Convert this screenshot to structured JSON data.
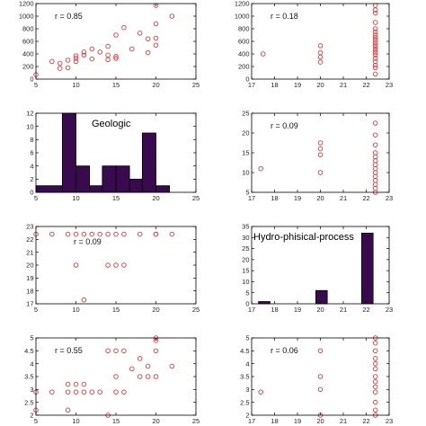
{
  "colors": {
    "marker": "#e0383a",
    "bar_fill": "#3a0a4e",
    "bar_edge": "#000000",
    "axis": "#000000"
  },
  "chart_data": [
    {
      "type": "scatter",
      "annotation": "r = 0.85",
      "xlim": [
        5,
        25
      ],
      "ylim": [
        0,
        1200
      ],
      "xticks": [
        5,
        10,
        15,
        20,
        25
      ],
      "yticks": [
        0,
        200,
        400,
        600,
        800,
        1000,
        1200
      ],
      "x": [
        5,
        7,
        8,
        8,
        9,
        9,
        10,
        10,
        10,
        11,
        11,
        12,
        12,
        13,
        14,
        14,
        14,
        15,
        15,
        15,
        16,
        17,
        18,
        19,
        19,
        20,
        20,
        20,
        20,
        22
      ],
      "y": [
        70,
        280,
        170,
        250,
        180,
        300,
        280,
        330,
        370,
        380,
        430,
        320,
        480,
        430,
        310,
        380,
        520,
        330,
        360,
        700,
        820,
        480,
        730,
        420,
        640,
        540,
        650,
        880,
        1170,
        1000
      ]
    },
    {
      "type": "scatter",
      "annotation": "r = 0.18",
      "xlim": [
        17,
        23
      ],
      "ylim": [
        0,
        1200
      ],
      "xticks": [
        17,
        18,
        19,
        20,
        21,
        22,
        23
      ],
      "yticks": [
        0,
        200,
        400,
        600,
        800,
        1000,
        1200
      ],
      "x": [
        17.5,
        20,
        20,
        20,
        20,
        22.4,
        22.4,
        22.4,
        22.4,
        22.4,
        22.4,
        22.4,
        22.4,
        22.4,
        22.4,
        22.4,
        22.4,
        22.4,
        22.4,
        22.4,
        22.4,
        22.4,
        22.4,
        22.4,
        22.4
      ],
      "y": [
        400,
        270,
        350,
        420,
        530,
        80,
        180,
        220,
        280,
        330,
        380,
        420,
        460,
        500,
        540,
        580,
        620,
        660,
        700,
        750,
        800,
        900,
        1050,
        1100,
        1170
      ]
    },
    {
      "type": "bar",
      "title": "Geologic",
      "xlim": [
        5,
        25
      ],
      "ylim": [
        0,
        12
      ],
      "xticks": [
        5,
        10,
        15,
        20,
        25
      ],
      "yticks": [
        0,
        2,
        4,
        6,
        8,
        10,
        12
      ],
      "bin_edges": [
        5,
        8.3,
        10,
        11.7,
        13.3,
        15,
        16.7,
        18.3,
        20,
        21.7
      ],
      "values": [
        1,
        12,
        4,
        1,
        4,
        4,
        2,
        9,
        1
      ]
    },
    {
      "type": "scatter",
      "annotation": "r = 0.09",
      "xlim": [
        17,
        23
      ],
      "ylim": [
        5,
        25
      ],
      "xticks": [
        17,
        18,
        19,
        20,
        21,
        22,
        23
      ],
      "yticks": [
        5,
        10,
        15,
        20,
        25
      ],
      "x": [
        17.4,
        20,
        20,
        20,
        20,
        22.4,
        22.4,
        22.4,
        22.4,
        22.4,
        22.4,
        22.4,
        22.4,
        22.4,
        22.4,
        22.4,
        22.4,
        22.4,
        22.4
      ],
      "y": [
        11,
        10,
        14.5,
        16,
        17.5,
        5,
        6,
        7,
        8,
        9,
        10,
        11,
        12,
        13,
        14,
        15,
        17,
        19.5,
        22.5
      ]
    },
    {
      "type": "scatter",
      "annotation": "r = 0.09",
      "xlim": [
        5,
        25
      ],
      "ylim": [
        17,
        23
      ],
      "xticks": [
        5,
        10,
        15,
        20,
        25
      ],
      "yticks": [
        17,
        18,
        19,
        20,
        21,
        22,
        23
      ],
      "x": [
        5,
        7,
        9,
        10,
        10,
        11,
        11,
        12,
        13,
        14,
        14,
        15,
        15,
        16,
        16,
        18,
        20,
        20,
        22
      ],
      "y": [
        22.4,
        22.4,
        22.4,
        22.4,
        20,
        22.4,
        17.3,
        22.4,
        22.4,
        22.4,
        20,
        22.4,
        20,
        22.4,
        20,
        22.4,
        22.4,
        22.4,
        22.4
      ]
    },
    {
      "type": "bar",
      "title": "Hydro-phisical-process",
      "xlim": [
        17,
        23
      ],
      "ylim": [
        0,
        35
      ],
      "xticks": [
        17,
        18,
        19,
        20,
        21,
        22,
        23
      ],
      "yticks": [
        0,
        5,
        10,
        15,
        20,
        25,
        30,
        35
      ],
      "bin_edges": [
        17.3,
        17.8,
        18.3,
        18.8,
        19.3,
        19.8,
        20.3,
        20.8,
        21.3,
        21.8,
        22.3
      ],
      "values": [
        1,
        0,
        0,
        0,
        0,
        6,
        0,
        0,
        0,
        32
      ]
    },
    {
      "type": "scatter",
      "annotation": "r = 0.55",
      "xlim": [
        5,
        25
      ],
      "ylim": [
        2,
        5
      ],
      "xticks": [
        5,
        10,
        15,
        20,
        25
      ],
      "yticks": [
        2,
        2.5,
        3,
        3.5,
        4,
        4.5,
        5
      ],
      "x": [
        5,
        5,
        7,
        9,
        9,
        9,
        10,
        10,
        11,
        11,
        12,
        13,
        14,
        14,
        15,
        15,
        15,
        16,
        16,
        17,
        18,
        18,
        19,
        19,
        20,
        20,
        20,
        20,
        22
      ],
      "y": [
        2.2,
        2.9,
        2.9,
        2.2,
        3.2,
        2.9,
        3.2,
        2.9,
        3.2,
        2.9,
        2.9,
        2.9,
        2,
        4.5,
        4.5,
        2.9,
        3.5,
        2.9,
        4.5,
        3.8,
        4.2,
        3.5,
        3.9,
        3.5,
        4.5,
        4.9,
        5,
        3.5,
        3.9
      ]
    },
    {
      "type": "scatter",
      "annotation": "r = 0.06",
      "xlim": [
        17,
        23
      ],
      "ylim": [
        2,
        5
      ],
      "xticks": [
        17,
        18,
        19,
        20,
        21,
        22,
        23
      ],
      "yticks": [
        2,
        2.5,
        3,
        3.5,
        4,
        4.5,
        5
      ],
      "x": [
        17.4,
        20,
        20,
        20,
        20,
        22.4,
        22.4,
        22.4,
        22.4,
        22.4,
        22.4,
        22.4,
        22.4,
        22.4,
        22.4,
        22.4,
        22.4,
        22.4
      ],
      "y": [
        2.9,
        2,
        3,
        3.5,
        4.5,
        2,
        2.2,
        2.5,
        2.9,
        3.1,
        3.3,
        3.5,
        3.8,
        4,
        4.2,
        4.5,
        4.8,
        5
      ]
    }
  ]
}
